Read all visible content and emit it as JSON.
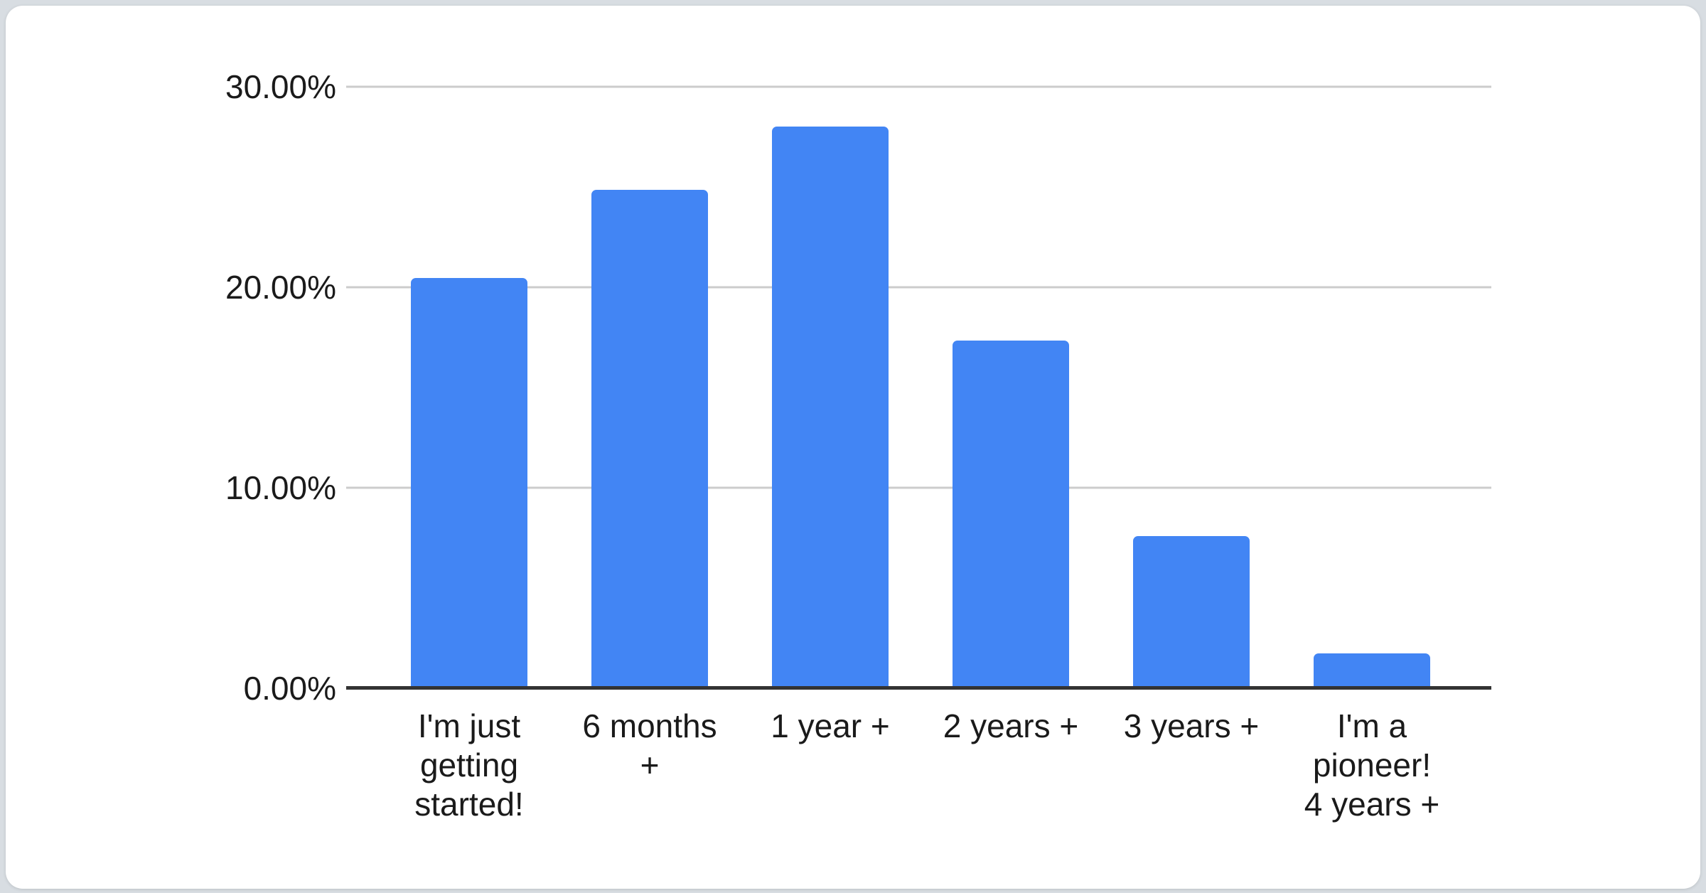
{
  "page": {
    "background_color": "#d8dde2",
    "card_background_color": "#ffffff"
  },
  "chart_data": {
    "type": "bar",
    "title": "",
    "categories": [
      "I'm just getting started!",
      "6 months +",
      "1 year +",
      "2 years +",
      "3 years +",
      "I'm a pioneer! 4 years +"
    ],
    "categories_display": [
      "I'm just\ngetting\nstarted!",
      "6 months\n+",
      "1 year +",
      "2 years +",
      "3 years +",
      "I'm a\npioneer!\n4 years +"
    ],
    "values": [
      20.45,
      24.85,
      28.0,
      17.35,
      7.6,
      1.75
    ],
    "value_unit": "%",
    "xlabel": "",
    "ylabel": "",
    "ylim": [
      0,
      30
    ],
    "yticks": [
      {
        "value": 30,
        "label": "30.00%"
      },
      {
        "value": 20,
        "label": "20.00%"
      },
      {
        "value": 10,
        "label": "10.00%"
      },
      {
        "value": 0,
        "label": "0.00%"
      }
    ],
    "grid": true,
    "legend_position": "none",
    "bar_color": "#4285F4",
    "gridline_color": "#cccccc",
    "axis_line_color": "#333333",
    "text_color": "#1a1a1a"
  }
}
